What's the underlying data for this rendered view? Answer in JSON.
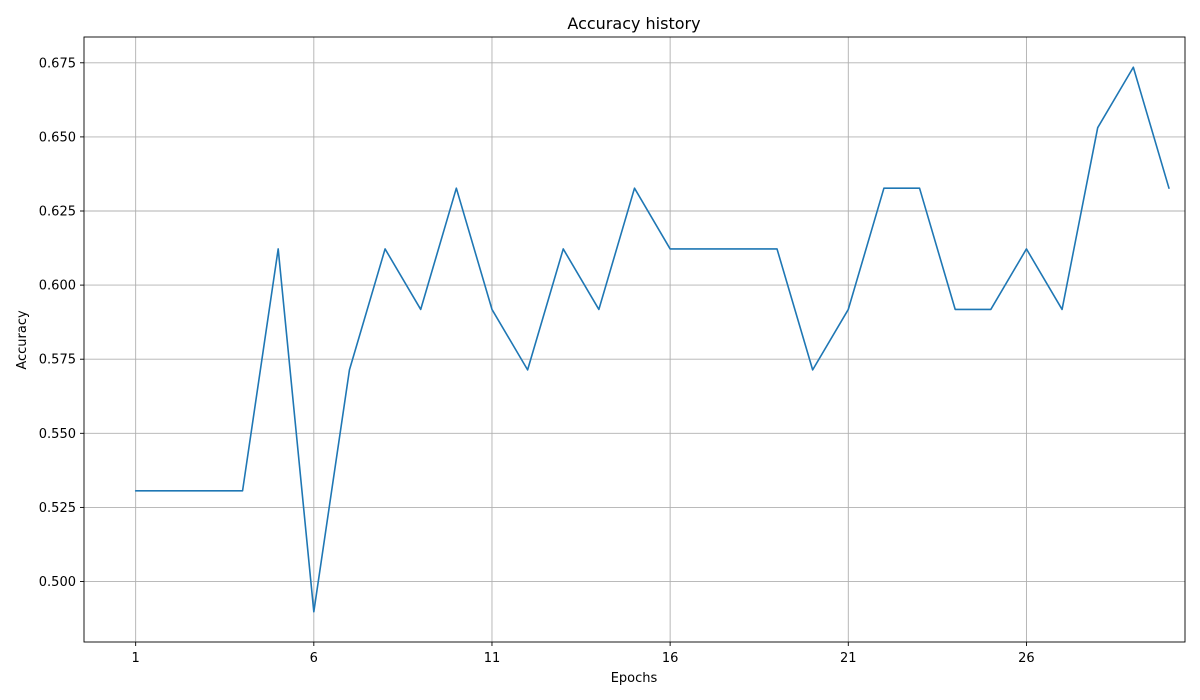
{
  "chart_data": {
    "type": "line",
    "title": "Accuracy history",
    "xlabel": "Epochs",
    "ylabel": "Accuracy",
    "xlim": [
      -0.45,
      30.45
    ],
    "ylim": [
      0.4796,
      0.6837
    ],
    "grid": true,
    "legend": "none",
    "xticks": [
      1,
      6,
      11,
      16,
      21,
      26
    ],
    "yticks": [
      0.5,
      0.525,
      0.55,
      0.575,
      0.6,
      0.625,
      0.65,
      0.675
    ],
    "ytick_labels": [
      "0.500",
      "0.525",
      "0.550",
      "0.575",
      "0.600",
      "0.625",
      "0.650",
      "0.675"
    ],
    "series": [
      {
        "color": "#1f77b4",
        "x": [
          1,
          2,
          3,
          4,
          5,
          6,
          7,
          8,
          9,
          10,
          11,
          12,
          13,
          14,
          15,
          16,
          17,
          18,
          19,
          20,
          21,
          22,
          23,
          24,
          25,
          26,
          27,
          28,
          29,
          30
        ],
        "values": [
          0.5306,
          0.5306,
          0.5306,
          0.5306,
          0.6122,
          0.4898,
          0.5714,
          0.6122,
          0.5918,
          0.6327,
          0.5918,
          0.5714,
          0.6122,
          0.5918,
          0.6327,
          0.6122,
          0.6122,
          0.6122,
          0.6122,
          0.5714,
          0.5918,
          0.6327,
          0.6327,
          0.5918,
          0.5918,
          0.6122,
          0.5918,
          0.6531,
          0.6735,
          0.6327
        ]
      }
    ]
  }
}
